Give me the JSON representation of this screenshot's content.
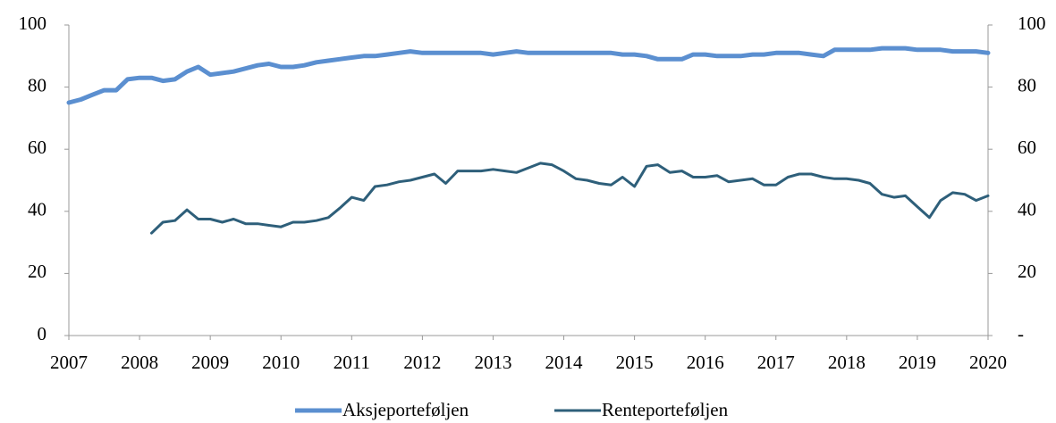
{
  "chart_data": {
    "type": "line",
    "x": [
      2007,
      2007.17,
      2007.33,
      2007.5,
      2007.67,
      2007.83,
      2008,
      2008.17,
      2008.33,
      2008.5,
      2008.67,
      2008.83,
      2009,
      2009.17,
      2009.33,
      2009.5,
      2009.67,
      2009.83,
      2010,
      2010.17,
      2010.33,
      2010.5,
      2010.67,
      2010.83,
      2011,
      2011.17,
      2011.33,
      2011.5,
      2011.67,
      2011.83,
      2012,
      2012.17,
      2012.33,
      2012.5,
      2012.67,
      2012.83,
      2013,
      2013.17,
      2013.33,
      2013.5,
      2013.67,
      2013.83,
      2014,
      2014.17,
      2014.33,
      2014.5,
      2014.67,
      2014.83,
      2015,
      2015.17,
      2015.33,
      2015.5,
      2015.67,
      2015.83,
      2016,
      2016.17,
      2016.33,
      2016.5,
      2016.67,
      2016.83,
      2017,
      2017.17,
      2017.33,
      2017.5,
      2017.67,
      2017.83,
      2018,
      2018.17,
      2018.33,
      2018.5,
      2018.67,
      2018.83,
      2019,
      2019.17,
      2019.33,
      2019.5,
      2019.67,
      2019.83,
      2020
    ],
    "series": [
      {
        "name": "Aksjeporteføljen",
        "color": "#5b8fd0",
        "values": [
          75,
          76,
          77.5,
          79,
          79,
          82.5,
          83,
          83,
          82,
          82.5,
          85,
          86.5,
          84,
          84.5,
          85,
          86,
          87,
          87.5,
          86.5,
          86.5,
          87,
          88,
          88.5,
          89,
          89.5,
          90,
          90,
          90.5,
          91,
          91.5,
          91,
          91,
          91,
          91,
          91,
          91,
          90.5,
          91,
          91.5,
          91,
          91,
          91,
          91,
          91,
          91,
          91,
          91,
          90.5,
          90.5,
          90,
          89,
          89,
          89,
          90.5,
          90.5,
          90,
          90,
          90,
          90.5,
          90.5,
          91,
          91,
          91,
          90.5,
          90,
          92,
          92,
          92,
          92,
          92.5,
          92.5,
          92.5,
          92,
          92,
          92,
          91.5,
          91.5,
          91.5,
          91
        ]
      },
      {
        "name": "Renteporteføljen",
        "color": "#2e5f7a",
        "values": [
          null,
          null,
          null,
          null,
          null,
          null,
          null,
          33,
          36.5,
          37,
          40.5,
          37.5,
          37.5,
          36.5,
          37.5,
          36,
          36,
          35.5,
          35,
          36.5,
          36.5,
          37,
          38,
          41,
          44.5,
          43.5,
          48,
          48.5,
          49.5,
          50,
          51,
          52,
          49,
          53,
          53,
          53,
          53.5,
          53,
          52.5,
          54,
          55.5,
          55,
          53,
          50.5,
          50,
          49,
          48.5,
          51,
          48,
          54.5,
          55,
          52.5,
          53,
          51,
          51,
          51.5,
          49.5,
          50,
          50.5,
          48.5,
          48.5,
          51,
          52,
          52,
          51,
          50.5,
          50.5,
          50,
          49,
          45.5,
          44.5,
          45,
          41.5,
          38,
          43.5,
          46,
          45.5,
          43.5,
          45
        ]
      }
    ],
    "xlim": [
      2007,
      2020
    ],
    "xticks": [
      2007,
      2008,
      2009,
      2010,
      2011,
      2012,
      2013,
      2014,
      2015,
      2016,
      2017,
      2018,
      2019,
      2020
    ],
    "ylim": [
      0,
      100
    ],
    "yticks": [
      0,
      20,
      40,
      60,
      80,
      100
    ],
    "y2lim": [
      0,
      100
    ],
    "y2ticks": [
      {
        "value": 0,
        "label": "-"
      },
      20,
      40,
      60,
      80,
      100
    ],
    "legend": "bottom"
  }
}
